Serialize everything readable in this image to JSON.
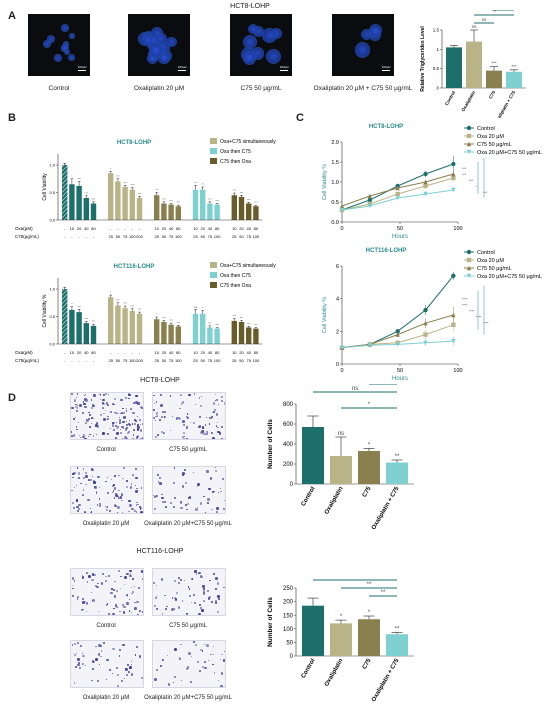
{
  "panel_letters": [
    "A",
    "B",
    "C",
    "D"
  ],
  "colors": {
    "teal": "#1d6f6c",
    "khaki": "#b9b487",
    "olive": "#8a7f4e",
    "aqua": "#7fd0d1",
    "lightaqua": "#8bd6d8",
    "darkolive": "#6a5c2a",
    "headline": "#2a8d8a",
    "purple": "#3c3c98"
  },
  "panelA": {
    "title": "HCT8-LOHP",
    "scale_label": "100μm",
    "images": [
      {
        "caption": "Control"
      },
      {
        "caption": "Oxaliplatin 20 μM"
      },
      {
        "caption": "C75 50 μg/mL"
      },
      {
        "caption": "Oxaliplatin 20 μM + C75 50 μg/mL"
      }
    ]
  },
  "chart_data": [
    {
      "id": "A-bar",
      "type": "bar",
      "categories": [
        "Control",
        "Oxaliplatin",
        "C75",
        "Oxaliplatin + C75"
      ],
      "values": [
        1.05,
        1.2,
        0.45,
        0.42
      ],
      "errors": [
        0.05,
        0.3,
        0.1,
        0.05
      ],
      "colors": [
        "#1d6f6c",
        "#b9b487",
        "#8a7f4e",
        "#7fd0d1"
      ],
      "annotations": [
        "",
        "ns",
        "***",
        "***"
      ],
      "brackets": [
        {
          "from": 1,
          "to": 3,
          "label": "**"
        },
        {
          "from": 1,
          "to": 2,
          "label": "ns"
        },
        {
          "from": 2,
          "to": 3,
          "label": "*"
        }
      ],
      "xlabel": "",
      "ylabel": "Relative Triglycerides Level",
      "ylim": [
        0,
        1.5
      ],
      "yticks": [
        0,
        0.5,
        1.0,
        1.5
      ]
    },
    {
      "id": "B-top",
      "type": "bar",
      "title": "HCT8-LOHP",
      "ylabel": "Cell Viability",
      "ylim": [
        0,
        1.2
      ],
      "yticks": [
        0.0,
        0.5,
        1.0
      ],
      "legend": [
        {
          "name": "Oxa+C75 simultaneously",
          "color": "#b9b487"
        },
        {
          "name": "Oxa then C75",
          "color": "#7fd0d1"
        },
        {
          "name": "C75 then Oxa",
          "color": "#6a5c2a"
        }
      ],
      "row_labels": [
        "Oxa(μM)",
        "C75(μg/mL)"
      ],
      "groups": [
        {
          "color": "#1d6f6c",
          "bars": [
            {
              "v": 1.0,
              "e": 0.03,
              "oxa": "-",
              "c75": "-",
              "hatch": true
            },
            {
              "v": 0.65,
              "e": 0.1,
              "oxa": "10",
              "c75": "-",
              "s": "*"
            },
            {
              "v": 0.62,
              "e": 0.08,
              "oxa": "20",
              "c75": "-",
              "s": "***"
            },
            {
              "v": 0.4,
              "e": 0.04,
              "oxa": "40",
              "c75": "-",
              "s": "***"
            },
            {
              "v": 0.3,
              "e": 0.03,
              "oxa": "80",
              "c75": "-",
              "s": "***"
            }
          ]
        },
        {
          "color": "#b9b487",
          "bars": [
            {
              "v": 0.85,
              "e": 0.03,
              "oxa": "-",
              "c75": "25",
              "s": "*"
            },
            {
              "v": 0.7,
              "e": 0.05,
              "oxa": "-",
              "c75": "50",
              "s": "***"
            },
            {
              "v": 0.6,
              "e": 0.03,
              "oxa": "-",
              "c75": "75",
              "s": "***"
            },
            {
              "v": 0.55,
              "e": 0.04,
              "oxa": "-",
              "c75": "100",
              "s": "***"
            },
            {
              "v": 0.4,
              "e": 0.03,
              "oxa": "-",
              "c75": "200",
              "s": "***"
            }
          ]
        },
        {
          "color": "#8a7f4e",
          "bars": [
            {
              "v": 0.45,
              "e": 0.05,
              "oxa": "10",
              "c75": "25",
              "s": "**"
            },
            {
              "v": 0.3,
              "e": 0.03,
              "oxa": "20",
              "c75": "50",
              "s": "***"
            },
            {
              "v": 0.28,
              "e": 0.02,
              "oxa": "40",
              "c75": "75",
              "s": "***"
            },
            {
              "v": 0.25,
              "e": 0.02,
              "oxa": "80",
              "c75": "100",
              "s": "***"
            }
          ]
        },
        {
          "color": "#7fd0d1",
          "bars": [
            {
              "v": 0.55,
              "e": 0.08,
              "oxa": "10",
              "c75": "25",
              "s": "**"
            },
            {
              "v": 0.55,
              "e": 0.05,
              "oxa": "20",
              "c75": "50",
              "s": "**"
            },
            {
              "v": 0.3,
              "e": 0.03,
              "oxa": "40",
              "c75": "75",
              "s": "***"
            },
            {
              "v": 0.28,
              "e": 0.02,
              "oxa": "80",
              "c75": "100",
              "s": "***"
            }
          ]
        },
        {
          "color": "#6a5c2a",
          "bars": [
            {
              "v": 0.45,
              "e": 0.04,
              "oxa": "10",
              "c75": "25",
              "s": "***"
            },
            {
              "v": 0.42,
              "e": 0.03,
              "oxa": "20",
              "c75": "50",
              "s": "***"
            },
            {
              "v": 0.3,
              "e": 0.02,
              "oxa": "40",
              "c75": "75",
              "s": "***"
            },
            {
              "v": 0.25,
              "e": 0.02,
              "oxa": "80",
              "c75": "100",
              "s": "***"
            }
          ]
        }
      ]
    },
    {
      "id": "B-bottom",
      "type": "bar",
      "title": "HCT116-LOHP",
      "ylabel": "Cell Viability %",
      "ylim": [
        0,
        1.2
      ],
      "yticks": [
        0.0,
        0.5,
        1.0
      ],
      "legend": [
        {
          "name": "Oxa+C75 simultaneously",
          "color": "#b9b487"
        },
        {
          "name": "Oxa then C75",
          "color": "#7fd0d1"
        },
        {
          "name": "C75 then Oxa",
          "color": "#6a5c2a"
        }
      ],
      "row_labels": [
        "Oxa(μM)",
        "C75(μg/mL)"
      ],
      "groups": [
        {
          "color": "#1d6f6c",
          "bars": [
            {
              "v": 1.0,
              "e": 0.03,
              "oxa": "-",
              "c75": "-",
              "hatch": true
            },
            {
              "v": 0.62,
              "e": 0.06,
              "oxa": "10",
              "c75": "-",
              "s": "*"
            },
            {
              "v": 0.58,
              "e": 0.05,
              "oxa": "20",
              "c75": "-",
              "s": "***"
            },
            {
              "v": 0.38,
              "e": 0.03,
              "oxa": "40",
              "c75": "-",
              "s": "***"
            },
            {
              "v": 0.33,
              "e": 0.03,
              "oxa": "80",
              "c75": "-",
              "s": "***"
            }
          ]
        },
        {
          "color": "#b9b487",
          "bars": [
            {
              "v": 0.85,
              "e": 0.04,
              "oxa": "-",
              "c75": "25",
              "s": "*"
            },
            {
              "v": 0.7,
              "e": 0.05,
              "oxa": "-",
              "c75": "50",
              "s": "***"
            },
            {
              "v": 0.65,
              "e": 0.04,
              "oxa": "-",
              "c75": "75",
              "s": "***"
            },
            {
              "v": 0.6,
              "e": 0.04,
              "oxa": "-",
              "c75": "100",
              "s": "***"
            },
            {
              "v": 0.55,
              "e": 0.03,
              "oxa": "-",
              "c75": "200",
              "s": "***"
            }
          ]
        },
        {
          "color": "#8a7f4e",
          "bars": [
            {
              "v": 0.45,
              "e": 0.04,
              "oxa": "10",
              "c75": "25",
              "s": "*"
            },
            {
              "v": 0.4,
              "e": 0.03,
              "oxa": "20",
              "c75": "50",
              "s": "***"
            },
            {
              "v": 0.35,
              "e": 0.03,
              "oxa": "40",
              "c75": "75",
              "s": "***"
            },
            {
              "v": 0.32,
              "e": 0.02,
              "oxa": "80",
              "c75": "100",
              "s": "***"
            }
          ]
        },
        {
          "color": "#7fd0d1",
          "bars": [
            {
              "v": 0.55,
              "e": 0.08,
              "oxa": "10",
              "c75": "25",
              "s": "ns"
            },
            {
              "v": 0.55,
              "e": 0.06,
              "oxa": "20",
              "c75": "50",
              "s": "*"
            },
            {
              "v": 0.3,
              "e": 0.03,
              "oxa": "40",
              "c75": "75",
              "s": "***"
            },
            {
              "v": 0.28,
              "e": 0.02,
              "oxa": "80",
              "c75": "100",
              "s": "***"
            }
          ]
        },
        {
          "color": "#6a5c2a",
          "bars": [
            {
              "v": 0.42,
              "e": 0.04,
              "oxa": "10",
              "c75": "25",
              "s": "***"
            },
            {
              "v": 0.4,
              "e": 0.03,
              "oxa": "20",
              "c75": "50",
              "s": "***"
            },
            {
              "v": 0.3,
              "e": 0.02,
              "oxa": "40",
              "c75": "75",
              "s": "***"
            },
            {
              "v": 0.28,
              "e": 0.02,
              "oxa": "80",
              "c75": "100",
              "s": "***"
            }
          ]
        }
      ]
    },
    {
      "id": "C-top",
      "type": "line",
      "title": "HCT8-LOHP",
      "xlabel": "Hours",
      "ylabel": "Cell Viability %",
      "x": [
        0,
        24,
        48,
        72,
        96
      ],
      "xlim": [
        0,
        100
      ],
      "xticks": [
        0,
        50,
        100
      ],
      "ylim": [
        0,
        2.0
      ],
      "yticks": [
        0.0,
        0.5,
        1.0,
        1.5,
        2.0
      ],
      "series": [
        {
          "name": "Control",
          "color": "#1d6f6c",
          "marker": "circle",
          "values": [
            0.3,
            0.55,
            0.9,
            1.2,
            1.45
          ],
          "errors": [
            0.03,
            0.05,
            0.05,
            0.08,
            0.2
          ]
        },
        {
          "name": "Oxa 20 μM",
          "color": "#b9b487",
          "marker": "square",
          "values": [
            0.3,
            0.45,
            0.7,
            0.9,
            1.1
          ],
          "errors": [
            0.03,
            0.04,
            0.05,
            0.06,
            0.08
          ]
        },
        {
          "name": "C75 50 μg/mL",
          "color": "#8a7f4e",
          "marker": "triangle",
          "values": [
            0.4,
            0.65,
            0.85,
            1.0,
            1.2
          ],
          "errors": [
            0.03,
            0.05,
            0.05,
            0.06,
            0.08
          ]
        },
        {
          "name": "Oxa 20 μM+C75 50 μg/mL",
          "color": "#7fd0d1",
          "marker": "triangle-down",
          "values": [
            0.3,
            0.4,
            0.6,
            0.7,
            0.8
          ],
          "errors": [
            0.02,
            0.03,
            0.04,
            0.05,
            0.06
          ]
        }
      ],
      "annotations": [
        "***",
        "***",
        "***",
        "*",
        "***"
      ]
    },
    {
      "id": "C-bottom",
      "type": "line",
      "title": "HCT116-LOHP",
      "xlabel": "Hours",
      "ylabel": "Cell Viability %",
      "x": [
        0,
        24,
        48,
        72,
        96
      ],
      "xlim": [
        0,
        100
      ],
      "xticks": [
        0,
        50,
        100
      ],
      "ylim": [
        0,
        6
      ],
      "yticks": [
        0,
        2,
        4,
        6
      ],
      "series": [
        {
          "name": "Control",
          "color": "#1d6f6c",
          "marker": "circle",
          "values": [
            1.0,
            1.2,
            2.0,
            3.3,
            5.4
          ],
          "errors": [
            0.05,
            0.08,
            0.15,
            0.3,
            0.25
          ]
        },
        {
          "name": "Oxa 20 μM",
          "color": "#b9b487",
          "marker": "square",
          "values": [
            1.0,
            1.2,
            1.3,
            1.8,
            2.4
          ],
          "errors": [
            0.05,
            0.08,
            0.1,
            0.3,
            0.4
          ]
        },
        {
          "name": "C75 50 μg/mL",
          "color": "#8a7f4e",
          "marker": "triangle",
          "values": [
            1.0,
            1.2,
            1.8,
            2.5,
            3.0
          ],
          "errors": [
            0.05,
            0.08,
            0.15,
            0.3,
            0.5
          ]
        },
        {
          "name": "Oxa 20 μM+C75 50 μg/mL",
          "color": "#7fd0d1",
          "marker": "triangle-down",
          "values": [
            1.0,
            1.15,
            1.2,
            1.3,
            1.4
          ],
          "errors": [
            0.05,
            0.06,
            0.1,
            0.2,
            0.3
          ]
        }
      ],
      "annotations": [
        "****",
        "****",
        "****",
        "****",
        "****"
      ]
    },
    {
      "id": "D-top",
      "type": "bar",
      "categories": [
        "Control",
        "Oxaliplatin",
        "C75",
        "Oxaliplatin + C75"
      ],
      "values": [
        570,
        280,
        330,
        215
      ],
      "errors": [
        110,
        190,
        25,
        25
      ],
      "colors": [
        "#1d6f6c",
        "#b9b487",
        "#8a7f4e",
        "#7fd0d1"
      ],
      "annotations": [
        "",
        "ns",
        "*",
        "**"
      ],
      "brackets": [
        {
          "from": 0,
          "to": 3,
          "label": "ns"
        },
        {
          "from": 1,
          "to": 3,
          "label": "*"
        },
        {
          "from": 2,
          "to": 3,
          "label": ""
        }
      ],
      "ylabel": "Number of Cells",
      "ylim": [
        0,
        800
      ],
      "yticks": [
        0,
        200,
        400,
        600,
        800
      ]
    },
    {
      "id": "D-bottom",
      "type": "bar",
      "categories": [
        "Control",
        "Oxaliplatin",
        "C75",
        "Oxaliplatin + C75"
      ],
      "values": [
        185,
        120,
        135,
        80
      ],
      "errors": [
        28,
        12,
        12,
        6
      ],
      "colors": [
        "#1d6f6c",
        "#b9b487",
        "#8a7f4e",
        "#7fd0d1"
      ],
      "annotations": [
        "",
        "*",
        "*",
        "**"
      ],
      "brackets": [
        {
          "from": 0,
          "to": 3,
          "label": "*"
        },
        {
          "from": 1,
          "to": 3,
          "label": "**"
        },
        {
          "from": 2,
          "to": 3,
          "label": "**"
        }
      ],
      "ylabel": "Number of Cells",
      "ylim": [
        0,
        250
      ],
      "yticks": [
        0,
        50,
        100,
        150,
        200,
        250
      ]
    }
  ],
  "panelD": {
    "top": {
      "title": "HCT8-LOHP",
      "captions": [
        "Control",
        "C75 50 μg/mL",
        "Oxaliplatin 20 μM",
        "Oxaliplatin 20 μM+C75 50 μg/mL"
      ],
      "density": [
        1.0,
        0.55,
        0.65,
        0.35
      ]
    },
    "bottom": {
      "title": "HCT116-LOHP",
      "captions": [
        "Control",
        "C75 50 μg/mL",
        "Oxaliplatin 20 μM",
        "Oxaliplatin 20 μM+C75 50 μg/mL"
      ],
      "density": [
        0.5,
        0.4,
        0.35,
        0.25
      ]
    }
  }
}
